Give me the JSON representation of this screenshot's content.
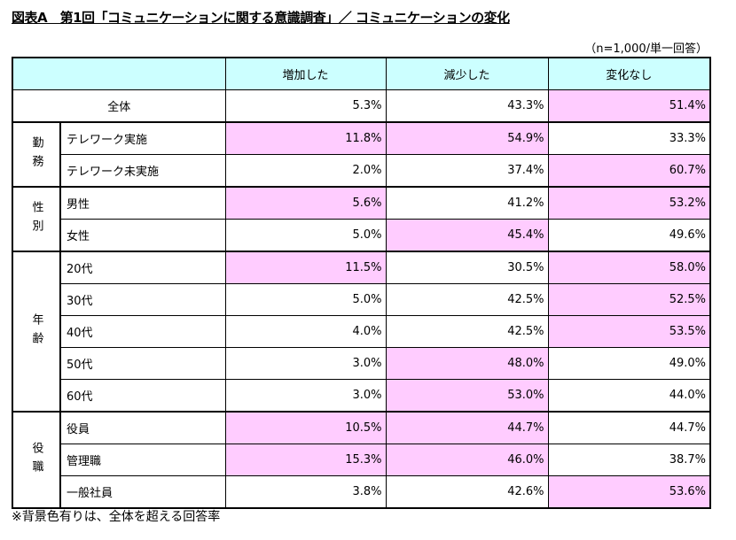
{
  "title": "図表A　第1回「コミュニケーションに関する意識調査」／ コミュニケーションの変化",
  "sample_note": "（n=1,000/単一回答）",
  "headers": [
    "増加した",
    "減少した",
    "変化なし"
  ],
  "colors": {
    "header_bg": "#CCFFFF",
    "highlight_bg": "#FFCCFF"
  },
  "total": {
    "label": "全体",
    "values": [
      "5.3%",
      "43.3%",
      "51.4%"
    ],
    "highlight": [
      false,
      false,
      true
    ]
  },
  "groups": [
    {
      "label": "勤務",
      "rows": [
        {
          "label": "テレワーク実施",
          "values": [
            "11.8%",
            "54.9%",
            "33.3%"
          ],
          "highlight": [
            true,
            true,
            false
          ]
        },
        {
          "label": "テレワーク未実施",
          "values": [
            "2.0%",
            "37.4%",
            "60.7%"
          ],
          "highlight": [
            false,
            false,
            true
          ]
        }
      ]
    },
    {
      "label": "性別",
      "rows": [
        {
          "label": "男性",
          "values": [
            "5.6%",
            "41.2%",
            "53.2%"
          ],
          "highlight": [
            true,
            false,
            true
          ]
        },
        {
          "label": "女性",
          "values": [
            "5.0%",
            "45.4%",
            "49.6%"
          ],
          "highlight": [
            false,
            true,
            false
          ]
        }
      ]
    },
    {
      "label": "年齢",
      "rows": [
        {
          "label": "20代",
          "values": [
            "11.5%",
            "30.5%",
            "58.0%"
          ],
          "highlight": [
            true,
            false,
            true
          ]
        },
        {
          "label": "30代",
          "values": [
            "5.0%",
            "42.5%",
            "52.5%"
          ],
          "highlight": [
            false,
            false,
            true
          ]
        },
        {
          "label": "40代",
          "values": [
            "4.0%",
            "42.5%",
            "53.5%"
          ],
          "highlight": [
            false,
            false,
            true
          ]
        },
        {
          "label": "50代",
          "values": [
            "3.0%",
            "48.0%",
            "49.0%"
          ],
          "highlight": [
            false,
            true,
            false
          ]
        },
        {
          "label": "60代",
          "values": [
            "3.0%",
            "53.0%",
            "44.0%"
          ],
          "highlight": [
            false,
            true,
            false
          ]
        }
      ]
    },
    {
      "label": "役職",
      "rows": [
        {
          "label": "役員",
          "values": [
            "10.5%",
            "44.7%",
            "44.7%"
          ],
          "highlight": [
            true,
            true,
            false
          ]
        },
        {
          "label": "管理職",
          "values": [
            "15.3%",
            "46.0%",
            "38.7%"
          ],
          "highlight": [
            true,
            true,
            false
          ]
        },
        {
          "label": "一般社員",
          "values": [
            "3.8%",
            "42.6%",
            "53.6%"
          ],
          "highlight": [
            false,
            false,
            true
          ]
        }
      ]
    }
  ],
  "footnote": "※背景色有りは、全体を超える回答率"
}
